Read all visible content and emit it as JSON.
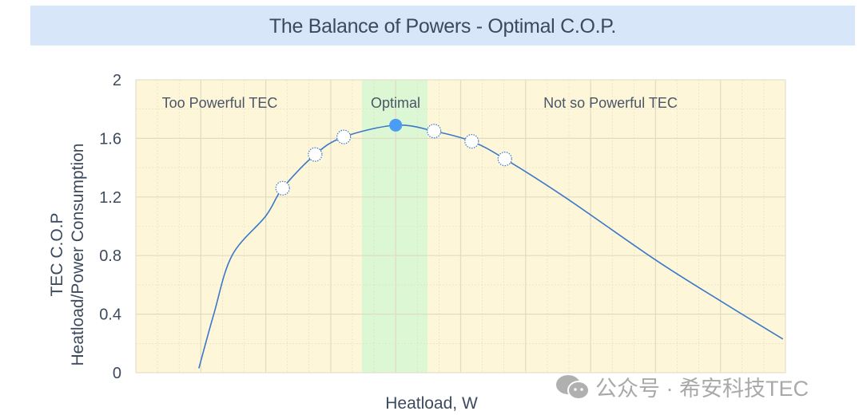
{
  "chart_data": {
    "type": "line",
    "title": "The Balance of Powers - Optimal C.O.P.",
    "xlabel": "Heatload, W",
    "ylabel": [
      "TEC C.O.P",
      "Heatload/Power Consumption"
    ],
    "ylim": [
      0,
      2
    ],
    "yticks": [
      "0",
      "0.4",
      "0.8",
      "1.2",
      "1.6",
      "2"
    ],
    "xlim": [
      0,
      10
    ],
    "grid": true,
    "curve": {
      "x": [
        0.97,
        1.2,
        1.48,
        2.0,
        2.26,
        2.76,
        3.2,
        4.0,
        4.59,
        5.17,
        5.68,
        6.6,
        8.0,
        9.0,
        9.96
      ],
      "y": [
        0.03,
        0.4,
        0.8,
        1.07,
        1.26,
        1.49,
        1.61,
        1.69,
        1.65,
        1.58,
        1.46,
        1.2,
        0.77,
        0.49,
        0.23
      ]
    },
    "markers": [
      {
        "x": 2.26,
        "y": 1.26,
        "style": "hollow"
      },
      {
        "x": 2.76,
        "y": 1.49,
        "style": "hollow"
      },
      {
        "x": 3.2,
        "y": 1.61,
        "style": "hollow"
      },
      {
        "x": 4.0,
        "y": 1.69,
        "style": "optimal"
      },
      {
        "x": 4.59,
        "y": 1.65,
        "style": "hollow"
      },
      {
        "x": 5.17,
        "y": 1.58,
        "style": "hollow"
      },
      {
        "x": 5.68,
        "y": 1.46,
        "style": "hollow"
      }
    ],
    "regions": [
      {
        "label": "Too Powerful TEC",
        "x": [
          0,
          3.48
        ],
        "color": "#fdf6d8"
      },
      {
        "label": "Optimal",
        "x": [
          3.48,
          4.49
        ],
        "color": "#dcf7d3"
      },
      {
        "label": "Not so Powerful TEC",
        "x": [
          4.49,
          10
        ],
        "color": "#fdf6d8"
      }
    ],
    "colors": {
      "line": "#3a78c9",
      "optimal_marker": "#4a9cf5",
      "grid": "#e2dbc3",
      "title_bg": "#d7e6f8"
    }
  },
  "watermark": "公众号 · 希安科技TEC"
}
